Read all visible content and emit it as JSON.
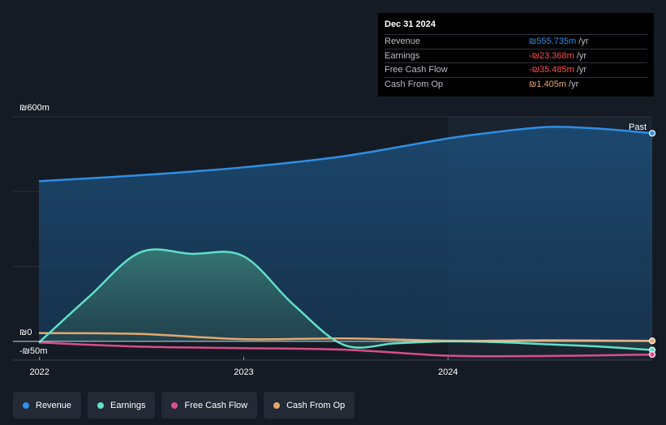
{
  "chart_data": {
    "type": "area",
    "x_domain": [
      "2021-12-31",
      "2024-12-31"
    ],
    "y_domain": [
      -50,
      600
    ],
    "y_tick_labels": [
      {
        "value": 600,
        "label": "₪600m"
      },
      {
        "value": 0,
        "label": "₪0"
      },
      {
        "value": -50,
        "label": "-₪50m"
      }
    ],
    "x_tick_labels": [
      {
        "date": "2022-01-01",
        "label": "2022"
      },
      {
        "date": "2023-01-01",
        "label": "2023"
      },
      {
        "date": "2024-01-01",
        "label": "2024"
      }
    ],
    "past_label": "Past",
    "past_region_start": "2024-01-01",
    "series": [
      {
        "name": "Revenue",
        "color": "#2e8fe6",
        "fill": true,
        "points": [
          [
            "2021-12-31",
            428
          ],
          [
            "2022-06-30",
            444
          ],
          [
            "2022-12-31",
            465
          ],
          [
            "2023-06-30",
            495
          ],
          [
            "2023-12-31",
            542
          ],
          [
            "2024-03-31",
            560
          ],
          [
            "2024-06-30",
            573
          ],
          [
            "2024-09-30",
            568
          ],
          [
            "2024-12-31",
            556
          ]
        ]
      },
      {
        "name": "Earnings",
        "color": "#5fe0c8",
        "fill": true,
        "points": [
          [
            "2021-12-31",
            -3
          ],
          [
            "2022-03-31",
            120
          ],
          [
            "2022-06-30",
            238
          ],
          [
            "2022-09-30",
            234
          ],
          [
            "2022-12-31",
            228
          ],
          [
            "2023-03-31",
            98
          ],
          [
            "2023-06-30",
            -10
          ],
          [
            "2023-09-30",
            -5
          ],
          [
            "2023-12-31",
            0
          ],
          [
            "2024-03-31",
            -2
          ],
          [
            "2024-06-30",
            -8
          ],
          [
            "2024-09-30",
            -14
          ],
          [
            "2024-12-31",
            -23
          ]
        ]
      },
      {
        "name": "Free Cash Flow",
        "color": "#d94f8a",
        "fill": false,
        "points": [
          [
            "2021-12-31",
            -3
          ],
          [
            "2022-06-30",
            -14
          ],
          [
            "2022-12-31",
            -18
          ],
          [
            "2023-06-30",
            -22
          ],
          [
            "2023-12-31",
            -38
          ],
          [
            "2024-06-30",
            -39
          ],
          [
            "2024-12-31",
            -35
          ]
        ]
      },
      {
        "name": "Cash From Op",
        "color": "#e6a86a",
        "fill": false,
        "points": [
          [
            "2021-12-31",
            22
          ],
          [
            "2022-06-30",
            20
          ],
          [
            "2022-12-31",
            6
          ],
          [
            "2023-06-30",
            8
          ],
          [
            "2023-12-31",
            2
          ],
          [
            "2024-06-30",
            3
          ],
          [
            "2024-12-31",
            1.405
          ]
        ]
      }
    ]
  },
  "tooltip": {
    "date": "Dec 31 2024",
    "rows": [
      {
        "label": "Revenue",
        "value": "₪555.735m",
        "unit": "/yr",
        "color": "#2e8fe6"
      },
      {
        "label": "Earnings",
        "value": "-₪23.368m",
        "unit": "/yr",
        "color": "#ff4b4b"
      },
      {
        "label": "Free Cash Flow",
        "value": "-₪35.485m",
        "unit": "/yr",
        "color": "#ff4b4b"
      },
      {
        "label": "Cash From Op",
        "value": "₪1.405m",
        "unit": "/yr",
        "color": "#e6a86a"
      }
    ]
  },
  "legend": [
    {
      "label": "Revenue",
      "color": "#2e8fe6"
    },
    {
      "label": "Earnings",
      "color": "#5fe0c8"
    },
    {
      "label": "Free Cash Flow",
      "color": "#d94f8a"
    },
    {
      "label": "Cash From Op",
      "color": "#e6a86a"
    }
  ]
}
